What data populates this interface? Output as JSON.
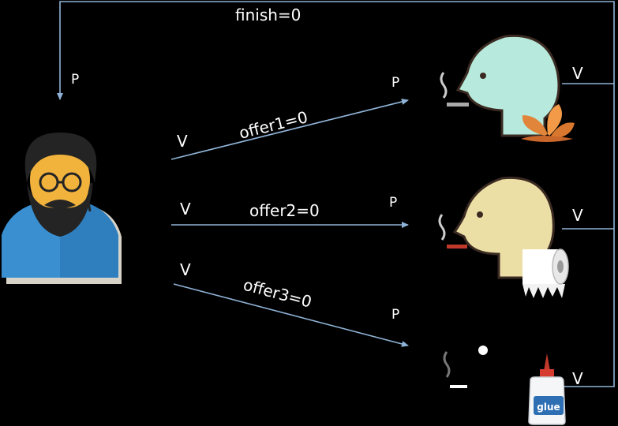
{
  "diagram": {
    "loop_label": "finish=0",
    "agent_signal": "P",
    "offers": [
      {
        "label": "offer1=0",
        "v": "V",
        "p": "P"
      },
      {
        "label": "offer2=0",
        "v": "V",
        "p": "P"
      },
      {
        "label": "offer3=0",
        "v": "V",
        "p": "P"
      }
    ],
    "smokers": [
      {
        "ingredient": "tobacco-leaves",
        "return_signal": "V"
      },
      {
        "ingredient": "paper-roll",
        "return_signal": "V"
      },
      {
        "ingredient": "glue-bottle",
        "ingredient_label": "glue",
        "return_signal": "V"
      }
    ]
  },
  "colors": {
    "background": "#000000",
    "line": "#8fb3d6",
    "shirt": "#3a8fd1",
    "skin": "#f2b33d",
    "hair": "#242424",
    "smoker1": "#b7eadc",
    "smoker2": "#ecdfa6",
    "smoker3": "#000000",
    "outline": "#3a2a22"
  }
}
